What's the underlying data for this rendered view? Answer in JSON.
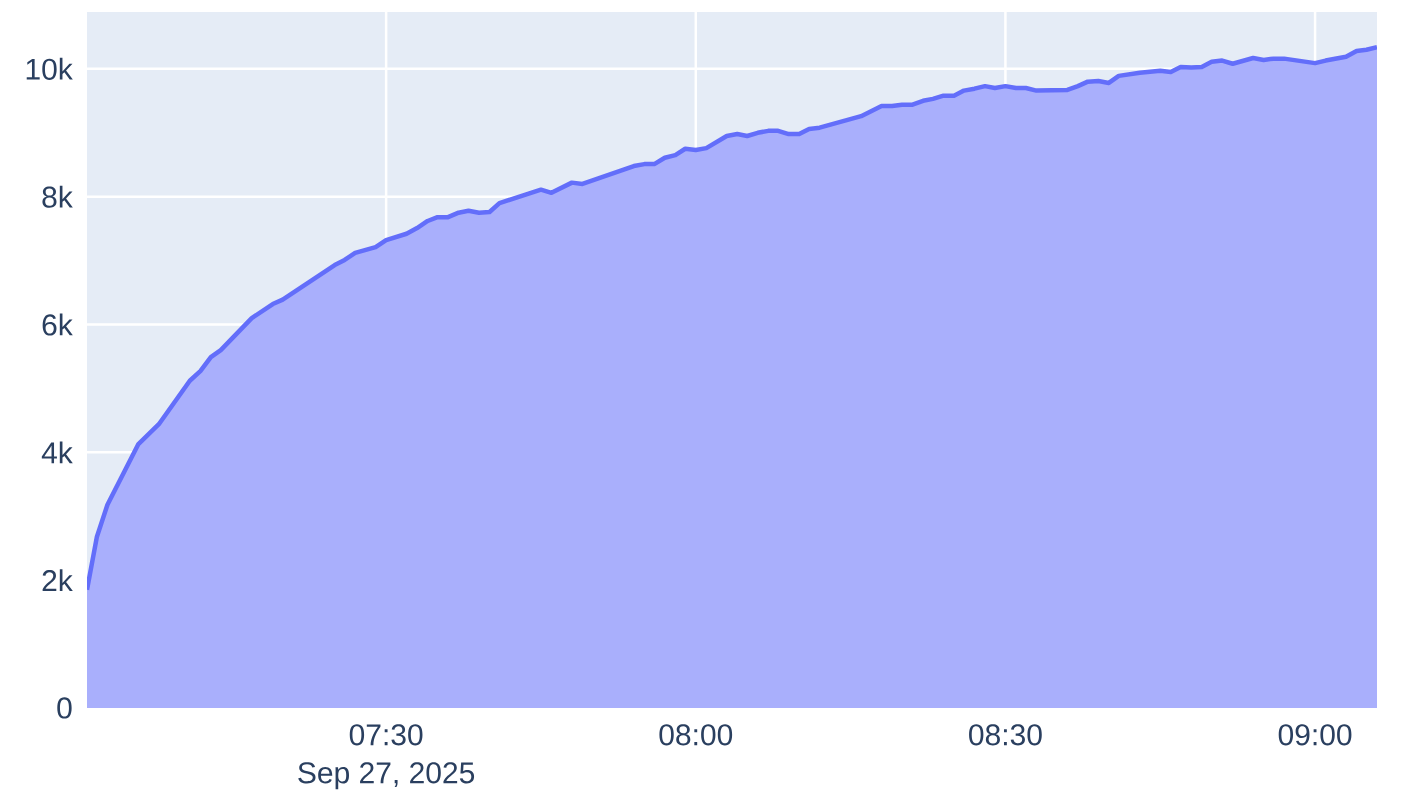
{
  "chart_data": {
    "type": "area",
    "x": [
      7.017,
      7.033,
      7.05,
      7.1,
      7.133,
      7.183,
      7.2,
      7.217,
      7.233,
      7.283,
      7.317,
      7.333,
      7.417,
      7.433,
      7.45,
      7.483,
      7.5,
      7.533,
      7.55,
      7.567,
      7.583,
      7.6,
      7.617,
      7.633,
      7.65,
      7.667,
      7.683,
      7.75,
      7.767,
      7.8,
      7.817,
      7.9,
      7.917,
      7.933,
      7.95,
      7.967,
      7.983,
      8.0,
      8.017,
      8.05,
      8.067,
      8.083,
      8.1,
      8.117,
      8.133,
      8.15,
      8.167,
      8.183,
      8.2,
      8.267,
      8.3,
      8.317,
      8.333,
      8.35,
      8.367,
      8.383,
      8.4,
      8.417,
      8.433,
      8.45,
      8.467,
      8.483,
      8.5,
      8.517,
      8.533,
      8.55,
      8.6,
      8.617,
      8.633,
      8.65,
      8.667,
      8.683,
      8.717,
      8.75,
      8.767,
      8.783,
      8.8,
      8.817,
      8.833,
      8.85,
      8.867,
      8.9,
      8.917,
      8.933,
      8.95,
      9.0,
      9.017,
      9.05,
      9.067,
      9.083,
      9.1
    ],
    "values": [
      1850,
      2680,
      3180,
      4130,
      4440,
      5120,
      5270,
      5490,
      5600,
      6100,
      6320,
      6390,
      6930,
      7010,
      7120,
      7210,
      7320,
      7420,
      7510,
      7620,
      7680,
      7680,
      7750,
      7780,
      7750,
      7760,
      7900,
      8110,
      8060,
      8220,
      8200,
      8480,
      8510,
      8510,
      8610,
      8650,
      8750,
      8730,
      8760,
      8950,
      8980,
      8950,
      9000,
      9030,
      9030,
      8980,
      8980,
      9060,
      9080,
      9260,
      9420,
      9420,
      9440,
      9440,
      9500,
      9530,
      9580,
      9580,
      9660,
      9690,
      9730,
      9700,
      9730,
      9700,
      9700,
      9660,
      9670,
      9730,
      9800,
      9810,
      9780,
      9890,
      9940,
      9970,
      9950,
      10030,
      10020,
      10030,
      10110,
      10130,
      10080,
      10170,
      10140,
      10160,
      10160,
      10090,
      10130,
      10190,
      10280,
      10300,
      10340
    ],
    "color": "#636efa",
    "grid": true,
    "xlim": [
      7.017,
      9.1
    ],
    "xticks": [
      {
        "value": 7.5,
        "label": "07:30"
      },
      {
        "value": 8.0,
        "label": "08:00"
      },
      {
        "value": 8.5,
        "label": "08:30"
      },
      {
        "value": 9.0,
        "label": "09:00"
      }
    ],
    "ylim": [
      0,
      10890
    ],
    "yticks": [
      0,
      {
        "value": 2000,
        "label": "2k"
      },
      {
        "value": 4000,
        "label": "4k"
      },
      {
        "value": 6000,
        "label": "6k"
      },
      {
        "value": 8000,
        "label": "8k"
      },
      {
        "value": 10000,
        "label": "10k"
      }
    ],
    "annotations": [
      "Sep 27, 2025"
    ]
  }
}
